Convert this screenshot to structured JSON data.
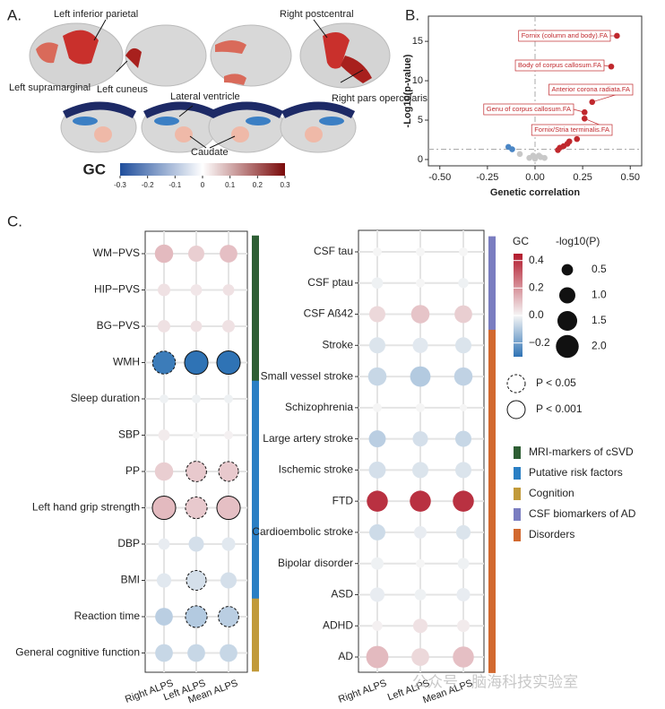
{
  "panel_labels": [
    "A.",
    "B.",
    "C."
  ],
  "panel_a": {
    "labels": [
      "Left inferior parietal",
      "Right postcentral",
      "Left supramarginal",
      "Left cuneus",
      "Lateral ventricle",
      "Right pars opercularis",
      "Caudate"
    ],
    "colorbar": {
      "title": "GC",
      "clim": [
        -0.3,
        0.3
      ],
      "colors": [
        "#1f4e9c",
        "#ffffff",
        "#7a0a0a"
      ],
      "ticks": [
        -0.3,
        -0.2,
        -0.1,
        0,
        0.1,
        0.2,
        0.3
      ]
    }
  },
  "chart_data": [
    {
      "type": "scatter",
      "xlabel": "Genetic correlation",
      "ylabel": "-Log10(p-value)",
      "xlim": [
        -0.56,
        0.56
      ],
      "ylim": [
        -0.8,
        18.2
      ],
      "xticks": [
        {
          "value": -0.5,
          "label": "-0.50"
        },
        {
          "value": -0.25,
          "label": "-0.25"
        },
        {
          "value": 0,
          "label": "0.00"
        },
        {
          "value": 0.25,
          "label": "0.25"
        },
        {
          "value": 0.5,
          "label": "0.50"
        }
      ],
      "yticks": [
        0,
        5,
        10,
        15
      ],
      "hline": 1.3,
      "vline": 0,
      "series": [
        {
          "color": "#c0282d",
          "x": [
            0.43,
            0.4,
            0.3,
            0.26,
            0.26,
            0.22,
            0.18,
            0.17,
            0.15,
            0.13,
            0.12
          ],
          "values": [
            15.7,
            11.8,
            7.3,
            6.0,
            5.2,
            2.6,
            2.3,
            2.0,
            1.7,
            1.5,
            1.2
          ]
        },
        {
          "color": "#4a86c5",
          "x": [
            -0.14,
            -0.12
          ],
          "values": [
            1.6,
            1.3
          ]
        },
        {
          "color": "#c8c8c8",
          "x": [
            -0.08,
            -0.03,
            -0.01,
            0.0,
            0.02,
            0.03,
            0.05
          ],
          "values": [
            0.7,
            0.2,
            0.5,
            0.1,
            0.5,
            0.3,
            0.2
          ]
        }
      ],
      "annotations": [
        "Fornix (column and body).FA",
        "Body of corpus callosum.FA",
        "Anterior corona radiata.FA",
        "Genu of corpus callosum.FA",
        "Fornix/Stria terminalis.FA"
      ]
    },
    {
      "type": "dotmatrix",
      "columns": [
        "Right ALPS",
        "Left ALPS",
        "Mean ALPS"
      ],
      "rows": [
        "WM−PVS",
        "HIP−PVS",
        "BG−PVS",
        "WMH",
        "Sleep duration",
        "SBP",
        "PP",
        "Left hand grip strength",
        "DBP",
        "BMI",
        "Reaction time",
        "General cognitive function"
      ],
      "row_groups": [
        0,
        0,
        0,
        0,
        1,
        1,
        1,
        1,
        1,
        1,
        2,
        2
      ],
      "values": [
        [
          0.12,
          0.08,
          0.11
        ],
        [
          0.04,
          0.03,
          0.04
        ],
        [
          0.04,
          0.04,
          0.04
        ],
        [
          -0.28,
          -0.3,
          -0.3
        ],
        [
          -0.01,
          -0.01,
          -0.01
        ],
        [
          0.02,
          0.0,
          0.01
        ],
        [
          0.08,
          0.09,
          0.09
        ],
        [
          0.12,
          0.09,
          0.11
        ],
        [
          -0.02,
          -0.05,
          -0.03
        ],
        [
          -0.03,
          -0.05,
          -0.05
        ],
        [
          -0.09,
          -0.1,
          -0.09
        ],
        [
          -0.07,
          -0.07,
          -0.07
        ]
      ],
      "sizes": [
        [
          1.3,
          1.0,
          1.2
        ],
        [
          0.6,
          0.5,
          0.5
        ],
        [
          0.6,
          0.5,
          0.6
        ],
        [
          2.0,
          2.1,
          2.1
        ],
        [
          0.3,
          0.3,
          0.3
        ],
        [
          0.5,
          0.2,
          0.3
        ],
        [
          1.3,
          1.6,
          1.5
        ],
        [
          2.1,
          1.8,
          2.1
        ],
        [
          0.5,
          0.9,
          0.7
        ],
        [
          0.8,
          1.5,
          1.0
        ],
        [
          1.2,
          1.8,
          1.6
        ],
        [
          1.2,
          1.2,
          1.2
        ]
      ],
      "outline": [
        [
          null,
          null,
          null
        ],
        [
          null,
          null,
          null
        ],
        [
          null,
          null,
          null
        ],
        [
          "dashed",
          "solid",
          "solid"
        ],
        [
          null,
          null,
          null
        ],
        [
          null,
          null,
          null
        ],
        [
          null,
          "dashed",
          "dashed"
        ],
        [
          "solid",
          "dashed",
          "solid"
        ],
        [
          null,
          null,
          null
        ],
        [
          null,
          "dashed",
          null
        ],
        [
          null,
          "dashed",
          "dashed"
        ],
        [
          null,
          null,
          null
        ]
      ]
    },
    {
      "type": "dotmatrix",
      "columns": [
        "Right ALPS",
        "Left ALPS",
        "Mean ALPS"
      ],
      "rows": [
        "CSF tau",
        "CSF ptau",
        "CSF Aß42",
        "Stroke",
        "Small vessel stroke",
        "Schizophrenia",
        "Large artery stroke",
        "Ischemic stroke",
        "FTD",
        "Cardioembolic stroke",
        "Bipolar disorder",
        "ASD",
        "ADHD",
        "AD"
      ],
      "row_groups": [
        3,
        3,
        3,
        4,
        4,
        4,
        4,
        4,
        4,
        4,
        4,
        4,
        4,
        4
      ],
      "values": [
        [
          0.0,
          0.0,
          0.0
        ],
        [
          -0.01,
          0.0,
          -0.01
        ],
        [
          0.06,
          0.1,
          0.08
        ],
        [
          -0.04,
          -0.03,
          -0.04
        ],
        [
          -0.07,
          -0.1,
          -0.08
        ],
        [
          0.0,
          0.0,
          0.0
        ],
        [
          -0.09,
          -0.05,
          -0.07
        ],
        [
          -0.05,
          -0.04,
          -0.04
        ],
        [
          0.4,
          0.4,
          0.4
        ],
        [
          -0.06,
          -0.02,
          -0.04
        ],
        [
          -0.01,
          0.0,
          -0.01
        ],
        [
          -0.02,
          -0.01,
          -0.02
        ],
        [
          0.01,
          0.04,
          0.02
        ],
        [
          0.12,
          0.06,
          0.11
        ]
      ],
      "sizes": [
        [
          0.3,
          0.3,
          0.3
        ],
        [
          0.5,
          0.3,
          0.4
        ],
        [
          1.0,
          1.3,
          1.2
        ],
        [
          1.0,
          0.9,
          1.0
        ],
        [
          1.3,
          1.6,
          1.3
        ],
        [
          0.3,
          0.3,
          0.2
        ],
        [
          1.1,
          0.9,
          1.0
        ],
        [
          1.1,
          1.0,
          1.0
        ],
        [
          1.7,
          1.7,
          1.7
        ],
        [
          1.0,
          0.6,
          0.8
        ],
        [
          0.6,
          0.3,
          0.5
        ],
        [
          0.8,
          0.5,
          0.7
        ],
        [
          0.4,
          0.8,
          0.6
        ],
        [
          1.9,
          1.2,
          1.7
        ]
      ],
      "outline": [
        [
          null,
          null,
          null
        ],
        [
          null,
          null,
          null
        ],
        [
          null,
          null,
          null
        ],
        [
          null,
          null,
          null
        ],
        [
          null,
          null,
          null
        ],
        [
          null,
          null,
          null
        ],
        [
          null,
          null,
          null
        ],
        [
          null,
          null,
          null
        ],
        [
          null,
          null,
          null
        ],
        [
          null,
          null,
          null
        ],
        [
          null,
          null,
          null
        ],
        [
          null,
          null,
          null
        ],
        [
          null,
          null,
          null
        ],
        [
          null,
          null,
          null
        ]
      ]
    }
  ],
  "color_legend": {
    "title": "GC",
    "clim": [
      -0.3,
      0.45
    ],
    "colors": [
      "#2f73b5",
      "#f5f5f5",
      "#b2182b"
    ],
    "ticks": [
      {
        "value": -0.2,
        "label": "−0.2"
      },
      {
        "value": 0,
        "label": "0.0"
      },
      0.2,
      0.4
    ]
  },
  "size_legend": {
    "title": "-log10(P)",
    "ticks": [
      0.5,
      {
        "value": 1,
        "label": "1.0"
      },
      1.5,
      {
        "value": 2,
        "label": "2.0"
      }
    ]
  },
  "significance_legend": [
    {
      "label": "P < 0.05",
      "style": "dashed"
    },
    {
      "label": "P < 0.001",
      "style": "solid"
    }
  ],
  "group_legend": [
    {
      "name": "MRI-markers of cSVD",
      "color": "#2e5e34"
    },
    {
      "name": "Putative risk factors",
      "color": "#2a7fc4"
    },
    {
      "name": "Cognition",
      "color": "#c19a3a"
    },
    {
      "name": "CSF biomarkers of AD",
      "color": "#7a7dc0"
    },
    {
      "name": "Disorders",
      "color": "#d2692f"
    }
  ],
  "watermark": "公众号 · 脑海科技实验室"
}
